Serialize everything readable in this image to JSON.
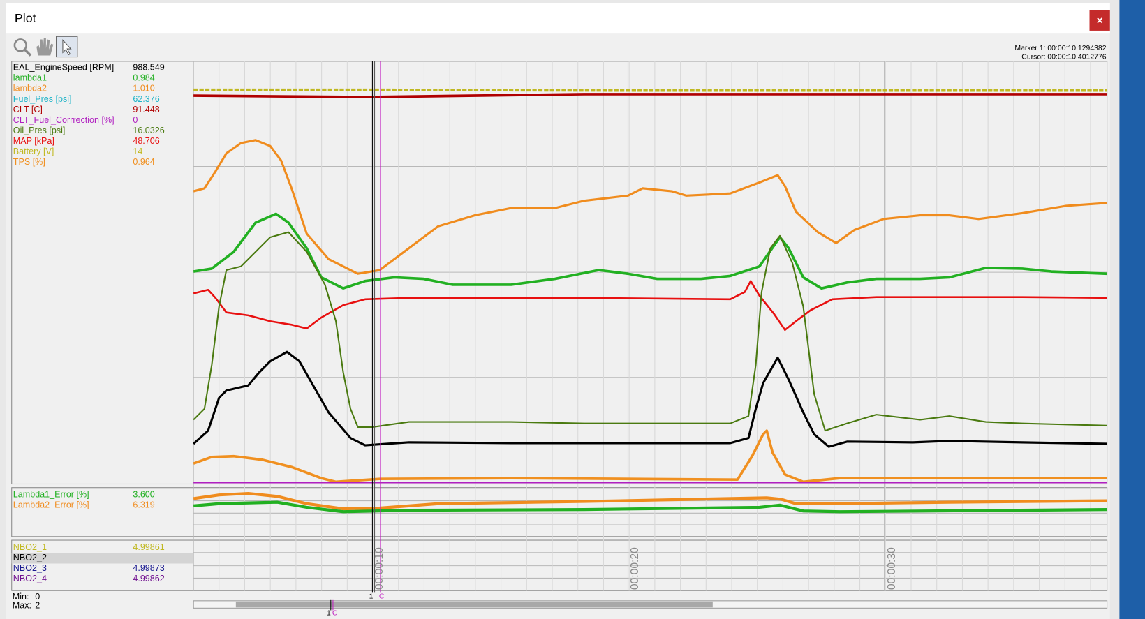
{
  "window": {
    "title": "Plot",
    "close": "×"
  },
  "cursor_info": {
    "marker": "Marker 1: 00:00:10.1294382",
    "cursor": "Cursor: 00:00:10.4012776"
  },
  "panels": [
    {
      "channels": [
        {
          "name": "EAL_EngineSpeed [RPM]",
          "value": "988.549",
          "color": "#000000"
        },
        {
          "name": "lambda1",
          "value": "0.984",
          "color": "#22b022"
        },
        {
          "name": "lambda2",
          "value": "1.010",
          "color": "#f08c1e"
        },
        {
          "name": "Fuel_Pres [psi]",
          "value": "62.376",
          "color": "#20b4c8"
        },
        {
          "name": "CLT [C]",
          "value": "91.448",
          "color": "#b00000"
        },
        {
          "name": "CLT_Fuel_Corrrection [%]",
          "value": "0",
          "color": "#b020c0"
        },
        {
          "name": "Oil_Pres [psi]",
          "value": "16.0326",
          "color": "#4a7a10"
        },
        {
          "name": "MAP [kPa]",
          "value": "48.706",
          "color": "#e81010"
        },
        {
          "name": "Battery [V]",
          "value": "14",
          "color": "#c0b820"
        },
        {
          "name": "TPS [%]",
          "value": "0.964",
          "color": "#f09020"
        }
      ]
    },
    {
      "channels": [
        {
          "name": "Lambda1_Error [%]",
          "value": "3.600",
          "color": "#22b022"
        },
        {
          "name": "Lambda2_Error [%]",
          "value": "6.319",
          "color": "#f08c1e"
        }
      ]
    },
    {
      "channels": [
        {
          "name": "NBO2_1",
          "value": "4.99861",
          "color": "#c0b820"
        },
        {
          "name": "NBO2_2",
          "value": "",
          "color": "#000000"
        },
        {
          "name": "NBO2_3",
          "value": "4.99873",
          "color": "#1a1a90"
        },
        {
          "name": "NBO2_4",
          "value": "4.99862",
          "color": "#701090"
        }
      ]
    }
  ],
  "time_labels": [
    "00:00:10",
    "00:00:20",
    "00:00:30"
  ],
  "marker_tags": {
    "marker": "1",
    "cursor": "C"
  },
  "range": {
    "min_label": "Min:",
    "min": 0,
    "max_label": "Max:",
    "max": 2
  }
}
